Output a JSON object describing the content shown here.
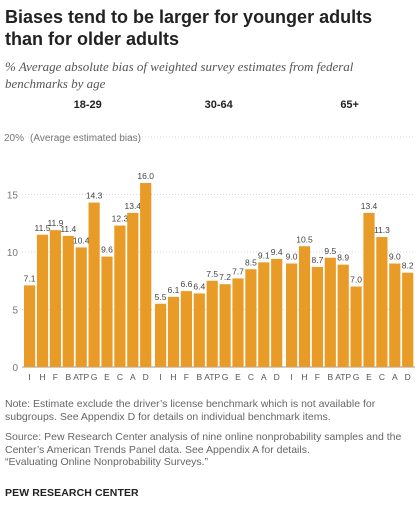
{
  "title": "Biases tend to be larger for younger adults than for older adults",
  "subtitle": "% Average absolute bias of weighted survey estimates from federal benchmarks by age",
  "chart_data": {
    "type": "bar",
    "y_axis_note": "(Average estimated bias)",
    "ylim": [
      0,
      20
    ],
    "yticks": [
      {
        "value": 0,
        "label": "0"
      },
      {
        "value": 5,
        "label": "5"
      },
      {
        "value": 10,
        "label": "10"
      },
      {
        "value": 15,
        "label": "15"
      },
      {
        "value": 20,
        "label": "20%"
      }
    ],
    "grid": true,
    "bar_color": "#E89C27",
    "groups": [
      {
        "name": "18-29",
        "categories": [
          "I",
          "H",
          "F",
          "B",
          "ATP",
          "G",
          "E",
          "C",
          "A",
          "D"
        ],
        "values": [
          7.1,
          11.5,
          11.9,
          11.4,
          10.4,
          14.3,
          9.6,
          12.3,
          13.4,
          16.0
        ]
      },
      {
        "name": "30-64",
        "categories": [
          "I",
          "H",
          "F",
          "B",
          "ATP",
          "G",
          "E",
          "C",
          "A",
          "D"
        ],
        "values": [
          5.5,
          6.1,
          6.6,
          6.4,
          7.5,
          7.2,
          7.7,
          8.5,
          9.1,
          9.4
        ]
      },
      {
        "name": "65+",
        "categories": [
          "I",
          "H",
          "F",
          "B",
          "ATP",
          "G",
          "E",
          "C",
          "A",
          "D"
        ],
        "values": [
          9.0,
          10.5,
          8.7,
          9.5,
          8.9,
          7.0,
          13.4,
          11.3,
          9.0,
          8.2
        ]
      }
    ]
  },
  "notes": {
    "note": "Note: Estimate exclude the driver’s license benchmark which is not available for subgroups. See Appendix D for details on individual benchmark items.",
    "source_lines": [
      "Source: Pew Research Center analysis of nine online nonprobability samples and the",
      "Center’s American Trends Panel data. See Appendix A for details.",
      "“Evaluating Online Nonprobability Surveys.”"
    ]
  },
  "brand": "PEW RESEARCH CENTER"
}
